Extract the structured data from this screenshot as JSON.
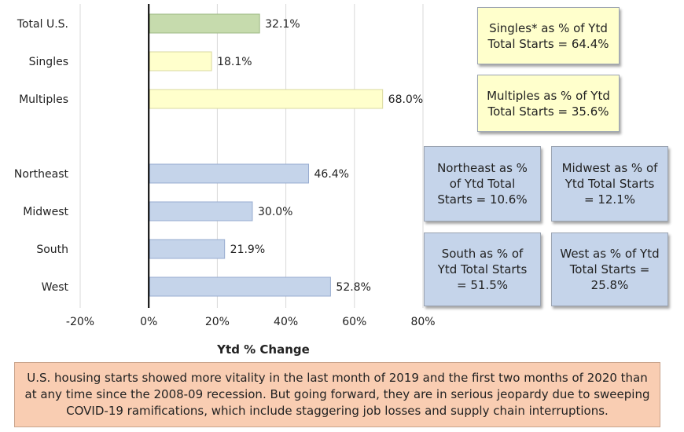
{
  "chart_data": {
    "type": "bar",
    "orientation": "horizontal",
    "categories": [
      "Total U.S.",
      "Singles",
      "Multiples",
      "Northeast",
      "Midwest",
      "South",
      "West"
    ],
    "values": [
      32.1,
      18.1,
      68.0,
      46.4,
      30.0,
      21.9,
      52.8
    ],
    "value_labels": [
      "32.1%",
      "18.1%",
      "68.0%",
      "46.4%",
      "30.0%",
      "21.9%",
      "52.8%"
    ],
    "bar_colors": [
      "#c6dbad",
      "#ffffcc",
      "#ffffcc",
      "#c5d4ea",
      "#c5d4ea",
      "#c5d4ea",
      "#c5d4ea"
    ],
    "bar_border_colors": [
      "#9db884",
      "#d9d8a0",
      "#d9d8a0",
      "#98acd0",
      "#98acd0",
      "#98acd0",
      "#98acd0"
    ],
    "xlim": [
      -20,
      80
    ],
    "xticks": [
      -20,
      0,
      20,
      40,
      60,
      80
    ],
    "xtick_labels": [
      "-20%",
      "0%",
      "20%",
      "40%",
      "60%",
      "80%"
    ],
    "xlabel": "Ytd % Change",
    "ylabel": "",
    "title": "",
    "grid": "vertical gridlines"
  },
  "boxes": {
    "singles": "Singles* as % of Ytd Total Starts = 64.4%",
    "multiples": "Multiples as % of Ytd Total Starts = 35.6%",
    "northeast": "Northeast as % of Ytd Total Starts = 10.6%",
    "midwest": "Midwest as % of Ytd Total Starts = 12.1%",
    "south": "South as % of Ytd Total Starts = 51.5%",
    "west": "West as % of Ytd Total Starts = 25.8%"
  },
  "caption": "U.S. housing starts showed more vitality in the last month of 2019 and the first two months of 2020 than at any time since the 2008-09 recession. But going forward, they are in serious jeopardy due to sweeping COVID-19 ramifications, which include staggering job losses and supply chain interruptions.",
  "colors": {
    "total_bar": "#c6dbad",
    "type_bar": "#ffffcc",
    "region_bar": "#c5d4ea",
    "caption_bg": "#f9cdb2"
  }
}
